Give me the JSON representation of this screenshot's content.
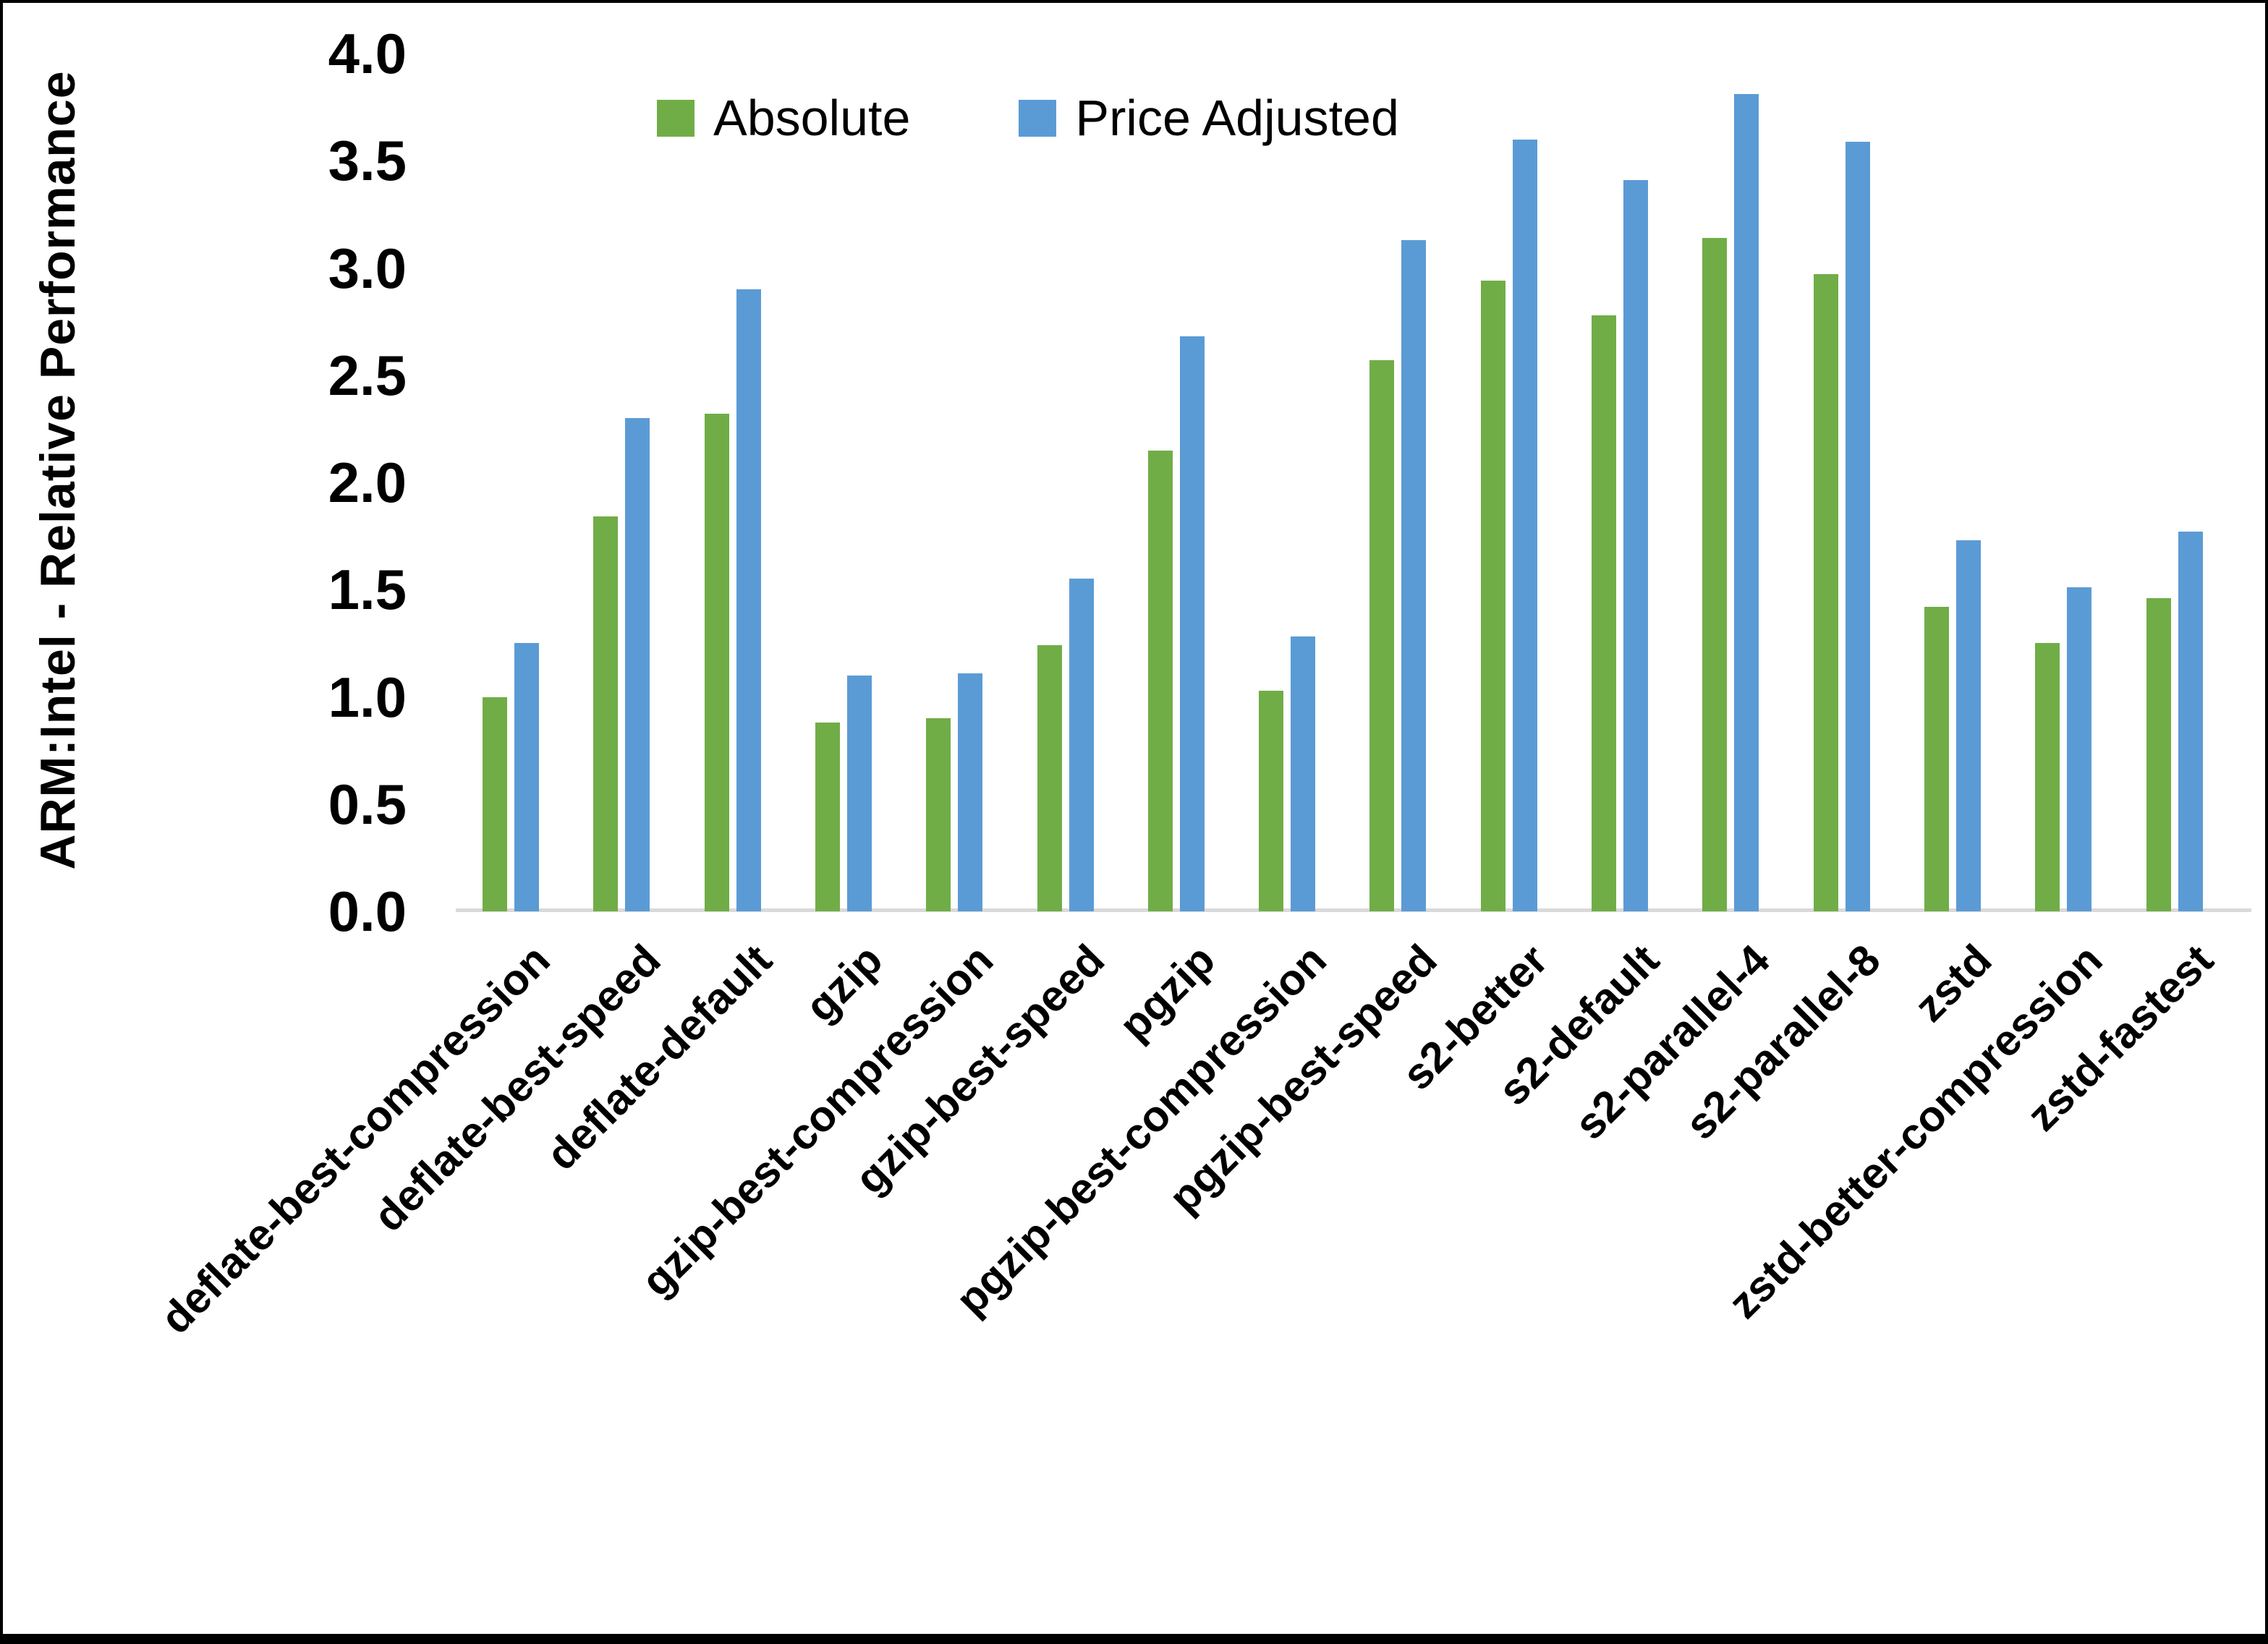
{
  "chart_data": {
    "type": "bar",
    "title": "",
    "ylabel": "ARM:Intel - Relative Performance",
    "xlabel": "",
    "ylim": [
      0.0,
      4.0
    ],
    "ytick_step": 0.5,
    "yticks": [
      "0.0",
      "0.5",
      "1.0",
      "1.5",
      "2.0",
      "2.5",
      "3.0",
      "3.5",
      "4.0"
    ],
    "grid": false,
    "legend_position": "top-center",
    "categories": [
      "deflate-best-compression",
      "deflate-best-speed",
      "deflate-default",
      "gzip",
      "gzip-best-compression",
      "gzip-best-speed",
      "pgzip",
      "pgzip-best-compression",
      "pgzip-best-speed",
      "s2-better",
      "s2-default",
      "s2-parallel-4",
      "s2-parallel-8",
      "zstd",
      "zstd-better-compression",
      "zstd-fastest"
    ],
    "series": [
      {
        "name": "Absolute",
        "color": "#70AD47",
        "values": [
          1.0,
          1.84,
          2.32,
          0.88,
          0.9,
          1.24,
          2.15,
          1.03,
          2.57,
          2.94,
          2.78,
          3.14,
          2.97,
          1.42,
          1.25,
          1.46
        ]
      },
      {
        "name": "Price Adjusted",
        "color": "#5B9BD5",
        "values": [
          1.25,
          2.3,
          2.9,
          1.1,
          1.11,
          1.55,
          2.68,
          1.28,
          3.13,
          3.6,
          3.41,
          3.81,
          3.59,
          1.73,
          1.51,
          1.77
        ]
      }
    ],
    "axis_color": "#d9d9d9",
    "frame_color": "#000000"
  }
}
